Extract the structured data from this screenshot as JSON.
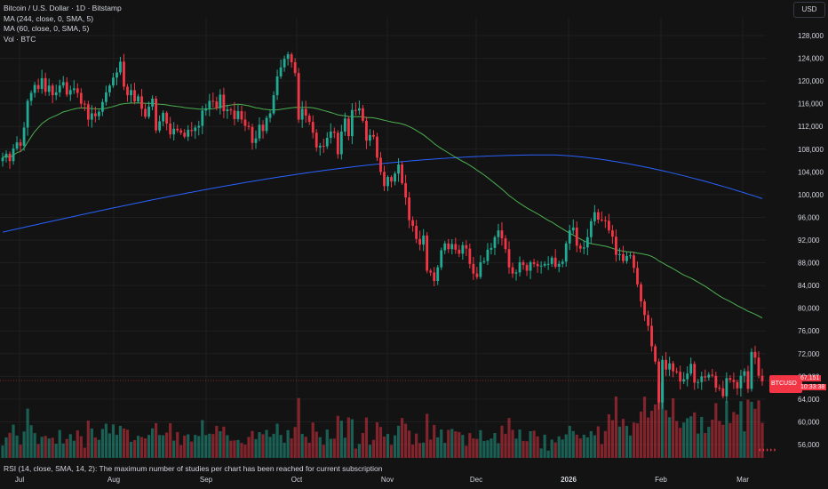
{
  "legend": {
    "symbol_line": "Bitcoin / U.S. Dollar · 1D · Bitstamp",
    "ma1": "MA (244, close, 0, SMA, 5)",
    "ma2": "MA (60, close, 0, SMA, 5)",
    "vol": "Vol · BTC"
  },
  "currency": "USD",
  "rsi_text": "RSI (14, close, SMA, 14, 2): The maximum number of studies per chart has been reached for current subscription",
  "price_label": {
    "symbol": "BTCUSD",
    "price": "67,151",
    "countdown": "10:33:38"
  },
  "colors": {
    "up": "#22ab94",
    "down": "#f23645",
    "ma_long": "#2962ff",
    "ma_short": "#4caf50",
    "background": "#131313"
  },
  "chart_data": {
    "type": "candlestick",
    "y_ticks": [
      "128,000",
      "124,000",
      "120,000",
      "116,000",
      "112,000",
      "108,000",
      "104,000",
      "100,000",
      "96,000",
      "92,000",
      "88,000",
      "84,000",
      "80,000",
      "76,000",
      "72,000",
      "68,000",
      "64,000",
      "60,000",
      "56,000"
    ],
    "x_ticks": [
      {
        "label": "Jul",
        "bold": false
      },
      {
        "label": "Aug",
        "bold": false
      },
      {
        "label": "Sep",
        "bold": false
      },
      {
        "label": "Oct",
        "bold": false
      },
      {
        "label": "Nov",
        "bold": false
      },
      {
        "label": "Dec",
        "bold": false
      },
      {
        "label": "2026",
        "bold": true
      },
      {
        "label": "Feb",
        "bold": false
      },
      {
        "label": "Mar",
        "bold": false
      }
    ],
    "ylim": [
      52000,
      131000
    ],
    "close": [
      106500,
      107200,
      105900,
      108100,
      109200,
      108600,
      111800,
      116500,
      117900,
      119300,
      118600,
      120500,
      118100,
      119200,
      117500,
      118000,
      119200,
      119800,
      117600,
      118400,
      118700,
      117900,
      116000,
      115900,
      113200,
      114300,
      113800,
      114600,
      116300,
      118000,
      119200,
      120600,
      121500,
      123400,
      119000,
      117500,
      118400,
      116400,
      117300,
      115100,
      113700,
      115500,
      116900,
      111300,
      112900,
      114400,
      112500,
      110600,
      111600,
      111300,
      110900,
      110200,
      111400,
      111200,
      111800,
      112100,
      114800,
      115200,
      116500,
      116400,
      115200,
      117600,
      114700,
      115000,
      114800,
      113300,
      114700,
      113200,
      112100,
      111900,
      109100,
      109900,
      112300,
      111200,
      113500,
      114300,
      117500,
      120800,
      122400,
      123900,
      124700,
      123300,
      121400,
      113200,
      115100,
      113900,
      112800,
      110900,
      108300,
      108600,
      108500,
      110000,
      111100,
      110900,
      107100,
      111100,
      113400,
      110300,
      114900,
      114800,
      115200,
      113000,
      109500,
      110500,
      110200,
      106500,
      104000,
      101500,
      103100,
      102300,
      103700,
      105300,
      102000,
      99500,
      95500,
      94500,
      92200,
      91200,
      92800,
      86600,
      86300,
      84800,
      87200,
      90200,
      91400,
      90400,
      91300,
      90300,
      89600,
      91100,
      90500,
      87800,
      86100,
      85500,
      88100,
      88300,
      90300,
      90600,
      92500,
      93700,
      92300,
      90400,
      87200,
      86100,
      86300,
      88100,
      87600,
      86600,
      88100,
      87800,
      87400,
      87500,
      87800,
      87800,
      88900,
      87300,
      87800,
      88200,
      91400,
      93700,
      94200,
      91000,
      90500,
      90700,
      92500,
      95300,
      96900,
      95600,
      95500,
      95400,
      93700,
      92600,
      89400,
      89500,
      88300,
      89200,
      89300,
      87100,
      84200,
      81200,
      78800,
      76900,
      73300,
      70600,
      63400,
      70900,
      69200,
      70300,
      68900,
      68800,
      67100,
      67500,
      68500,
      70200,
      66900,
      67000,
      68000,
      67800,
      68300,
      68100,
      66000,
      65900,
      64500,
      67700,
      67400,
      67000,
      65900,
      68100,
      68900,
      65800,
      72300,
      71300,
      68100,
      67150
    ],
    "series": [
      {
        "name": "MA (244, close, 0, SMA, 5)"
      },
      {
        "name": "MA (60, close, 0, SMA, 5)"
      },
      {
        "name": "Vol · BTC"
      }
    ]
  }
}
